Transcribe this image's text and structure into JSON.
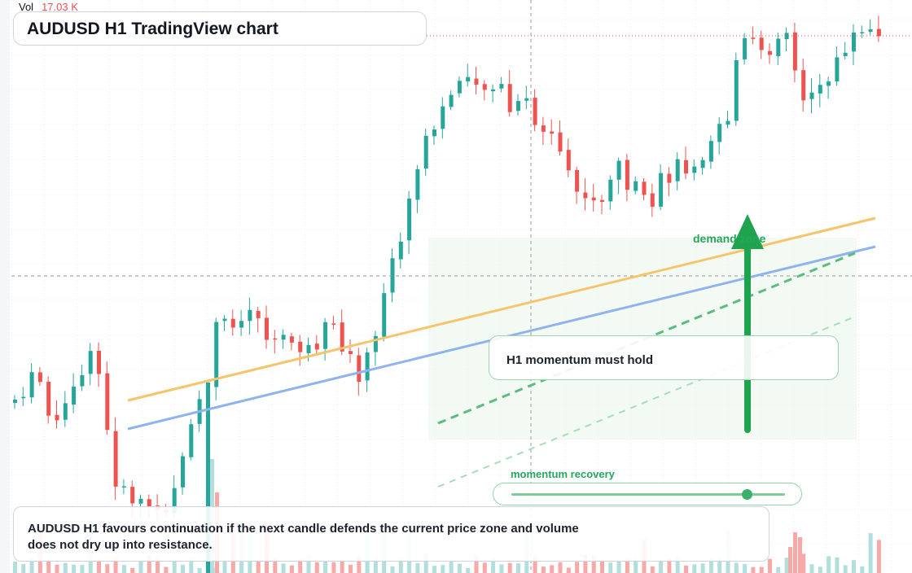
{
  "header": {
    "title": "AUDUSD H1 TradingView chart",
    "volume_label": "Vol",
    "volume_value": "17.03 K"
  },
  "annotations": {
    "callout_text": "H1 momentum must hold",
    "zone_label": "demand zone"
  },
  "momentum_slider": {
    "label": "momentum recovery",
    "value_fraction": 0.86
  },
  "note": {
    "text": "AUDUSD H1 favours continuation if the next candle defends the current price zone and volume does not dry up into resistance."
  },
  "colors": {
    "bull": "#26a69a",
    "bear": "#ef5350",
    "bull_volume": "#b2dfdb",
    "bear_volume": "#f7a9a7",
    "zone_fill": "#e8f5e9",
    "trend_orange": "#f6c46a",
    "trend_blue": "#8fb3ee",
    "arrow_green": "#1fa34f",
    "accent_green": "#26a65b"
  },
  "chart_data": {
    "type": "candlestick",
    "symbol": "AUDUSD",
    "timeframe": "H1",
    "candle_count": 105,
    "grid": true,
    "drawings": [
      "orange trendline",
      "blue trendline",
      "dashed green channel",
      "demand zone rectangle",
      "upward arrow"
    ]
  }
}
